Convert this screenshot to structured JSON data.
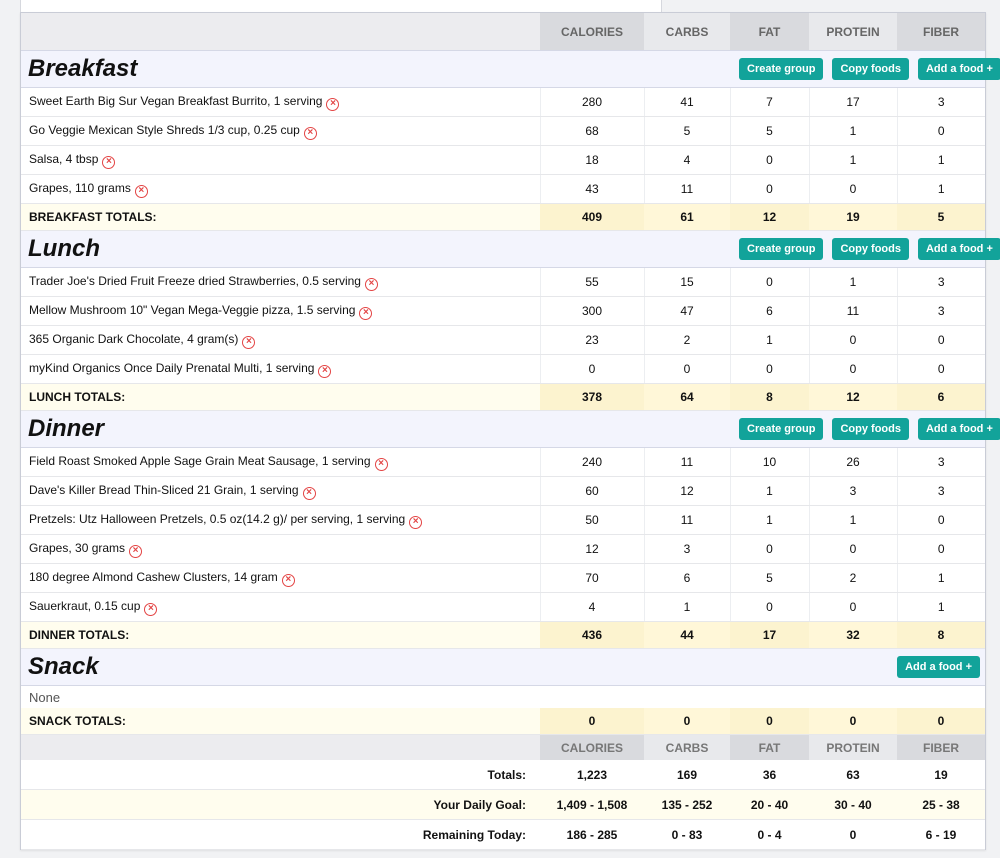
{
  "columns": [
    "CALORIES",
    "CARBS",
    "FAT",
    "PROTEIN",
    "FIBER"
  ],
  "buttons": {
    "create_group": "Create group",
    "copy_foods": "Copy foods",
    "add_food": "Add a food +"
  },
  "meals": [
    {
      "title": "Breakfast",
      "show_group_buttons": true,
      "foods": [
        {
          "name": "Sweet Earth Big Sur Vegan Breakfast Burrito, 1 serving",
          "values": [
            "280",
            "41",
            "7",
            "17",
            "3"
          ]
        },
        {
          "name": "Go Veggie Mexican Style Shreds 1/3 cup, 0.25 cup",
          "values": [
            "68",
            "5",
            "5",
            "1",
            "0"
          ]
        },
        {
          "name": "Salsa, 4 tbsp",
          "values": [
            "18",
            "4",
            "0",
            "1",
            "1"
          ]
        },
        {
          "name": "Grapes, 110 grams",
          "values": [
            "43",
            "11",
            "0",
            "0",
            "1"
          ]
        }
      ],
      "totals_label": "BREAKFAST TOTALS:",
      "totals": [
        "409",
        "61",
        "12",
        "19",
        "5"
      ]
    },
    {
      "title": "Lunch",
      "show_group_buttons": true,
      "foods": [
        {
          "name": "Trader Joe's Dried Fruit Freeze dried Strawberries, 0.5 serving",
          "values": [
            "55",
            "15",
            "0",
            "1",
            "3"
          ]
        },
        {
          "name": "Mellow Mushroom 10\" Vegan Mega-Veggie pizza, 1.5 serving",
          "values": [
            "300",
            "47",
            "6",
            "11",
            "3"
          ]
        },
        {
          "name": "365 Organic Dark Chocolate, 4 gram(s)",
          "values": [
            "23",
            "2",
            "1",
            "0",
            "0"
          ]
        },
        {
          "name": "myKind Organics Once Daily Prenatal Multi, 1 serving",
          "values": [
            "0",
            "0",
            "0",
            "0",
            "0"
          ]
        }
      ],
      "totals_label": "LUNCH TOTALS:",
      "totals": [
        "378",
        "64",
        "8",
        "12",
        "6"
      ]
    },
    {
      "title": "Dinner",
      "show_group_buttons": true,
      "foods": [
        {
          "name": "Field Roast Smoked Apple Sage Grain Meat Sausage, 1 serving",
          "values": [
            "240",
            "11",
            "10",
            "26",
            "3"
          ]
        },
        {
          "name": "Dave's Killer Bread Thin-Sliced 21 Grain, 1 serving",
          "values": [
            "60",
            "12",
            "1",
            "3",
            "3"
          ]
        },
        {
          "name": "Pretzels: Utz Halloween Pretzels, 0.5 oz(14.2 g)/ per serving, 1 serving",
          "values": [
            "50",
            "11",
            "1",
            "1",
            "0"
          ]
        },
        {
          "name": "Grapes, 30 grams",
          "values": [
            "12",
            "3",
            "0",
            "0",
            "0"
          ]
        },
        {
          "name": "180 degree Almond Cashew Clusters, 14 gram",
          "values": [
            "70",
            "6",
            "5",
            "2",
            "1"
          ]
        },
        {
          "name": "Sauerkraut, 0.15 cup",
          "values": [
            "4",
            "1",
            "0",
            "0",
            "1"
          ]
        }
      ],
      "totals_label": "DINNER TOTALS:",
      "totals": [
        "436",
        "44",
        "17",
        "32",
        "8"
      ]
    },
    {
      "title": "Snack",
      "show_group_buttons": false,
      "foods": [],
      "empty_text": "None",
      "totals_label": "SNACK TOTALS:",
      "totals": [
        "0",
        "0",
        "0",
        "0",
        "0"
      ]
    }
  ],
  "summary": {
    "totals": {
      "label": "Totals:",
      "values": [
        "1,223",
        "169",
        "36",
        "63",
        "19"
      ]
    },
    "daily_goal": {
      "label": "Your Daily Goal:",
      "values": [
        "1,409 - 1,508",
        "135 - 252",
        "20 - 40",
        "30 - 40",
        "25 - 38"
      ]
    },
    "remaining": {
      "label": "Remaining Today:",
      "values": [
        "186 - 285",
        "0 - 83",
        "0 - 4",
        "0",
        "6 - 19"
      ]
    }
  },
  "colors": {
    "accent": "#12a39a",
    "delete": "#e34444",
    "totals_bg": "#fcf3cf",
    "meal_bg": "#f3f4fd"
  },
  "icons": {
    "delete": "remove-food-icon"
  }
}
